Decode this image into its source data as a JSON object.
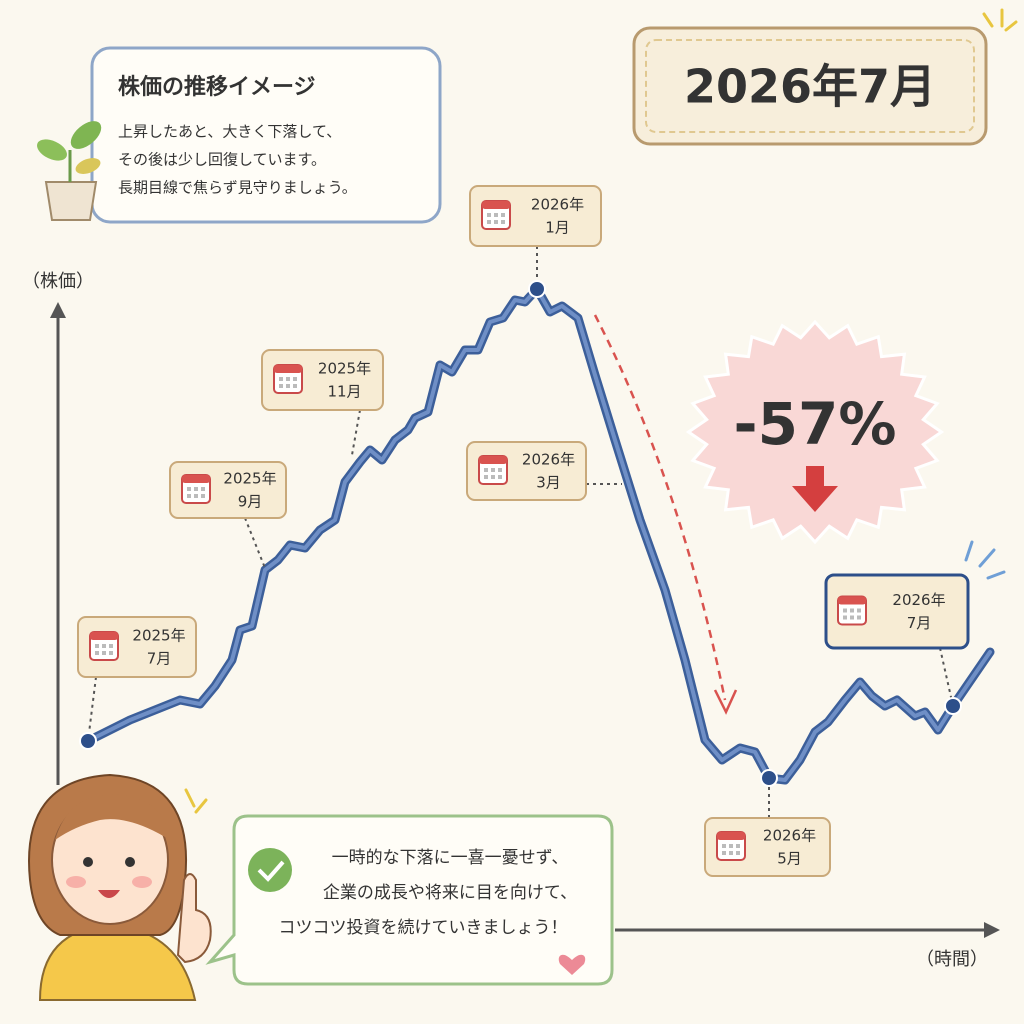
{
  "header": {
    "date": "2026年7月"
  },
  "info": {
    "title": "株価の推移イメージ",
    "lines": [
      "上昇したあと、大きく下落して、",
      "その後は少し回復しています。",
      "長期目線で焦らず見守りましょう。"
    ]
  },
  "axes": {
    "y_label": "（株価）",
    "x_label": "（時間）"
  },
  "callouts": [
    {
      "year": "2025年",
      "month": "7月"
    },
    {
      "year": "2025年",
      "month": "9月"
    },
    {
      "year": "2025年",
      "month": "11月"
    },
    {
      "year": "2026年",
      "month": "1月"
    },
    {
      "year": "2026年",
      "month": "3月"
    },
    {
      "year": "2026年",
      "month": "5月"
    },
    {
      "year": "2026年",
      "month": "7月"
    }
  ],
  "badge": {
    "text": "-57%"
  },
  "speech": {
    "lines": [
      "一時的な下落に一喜一憂せず、",
      "企業の成長や将来に目を向けて、",
      "コツコツ投資を続けていきましょう！"
    ]
  }
}
